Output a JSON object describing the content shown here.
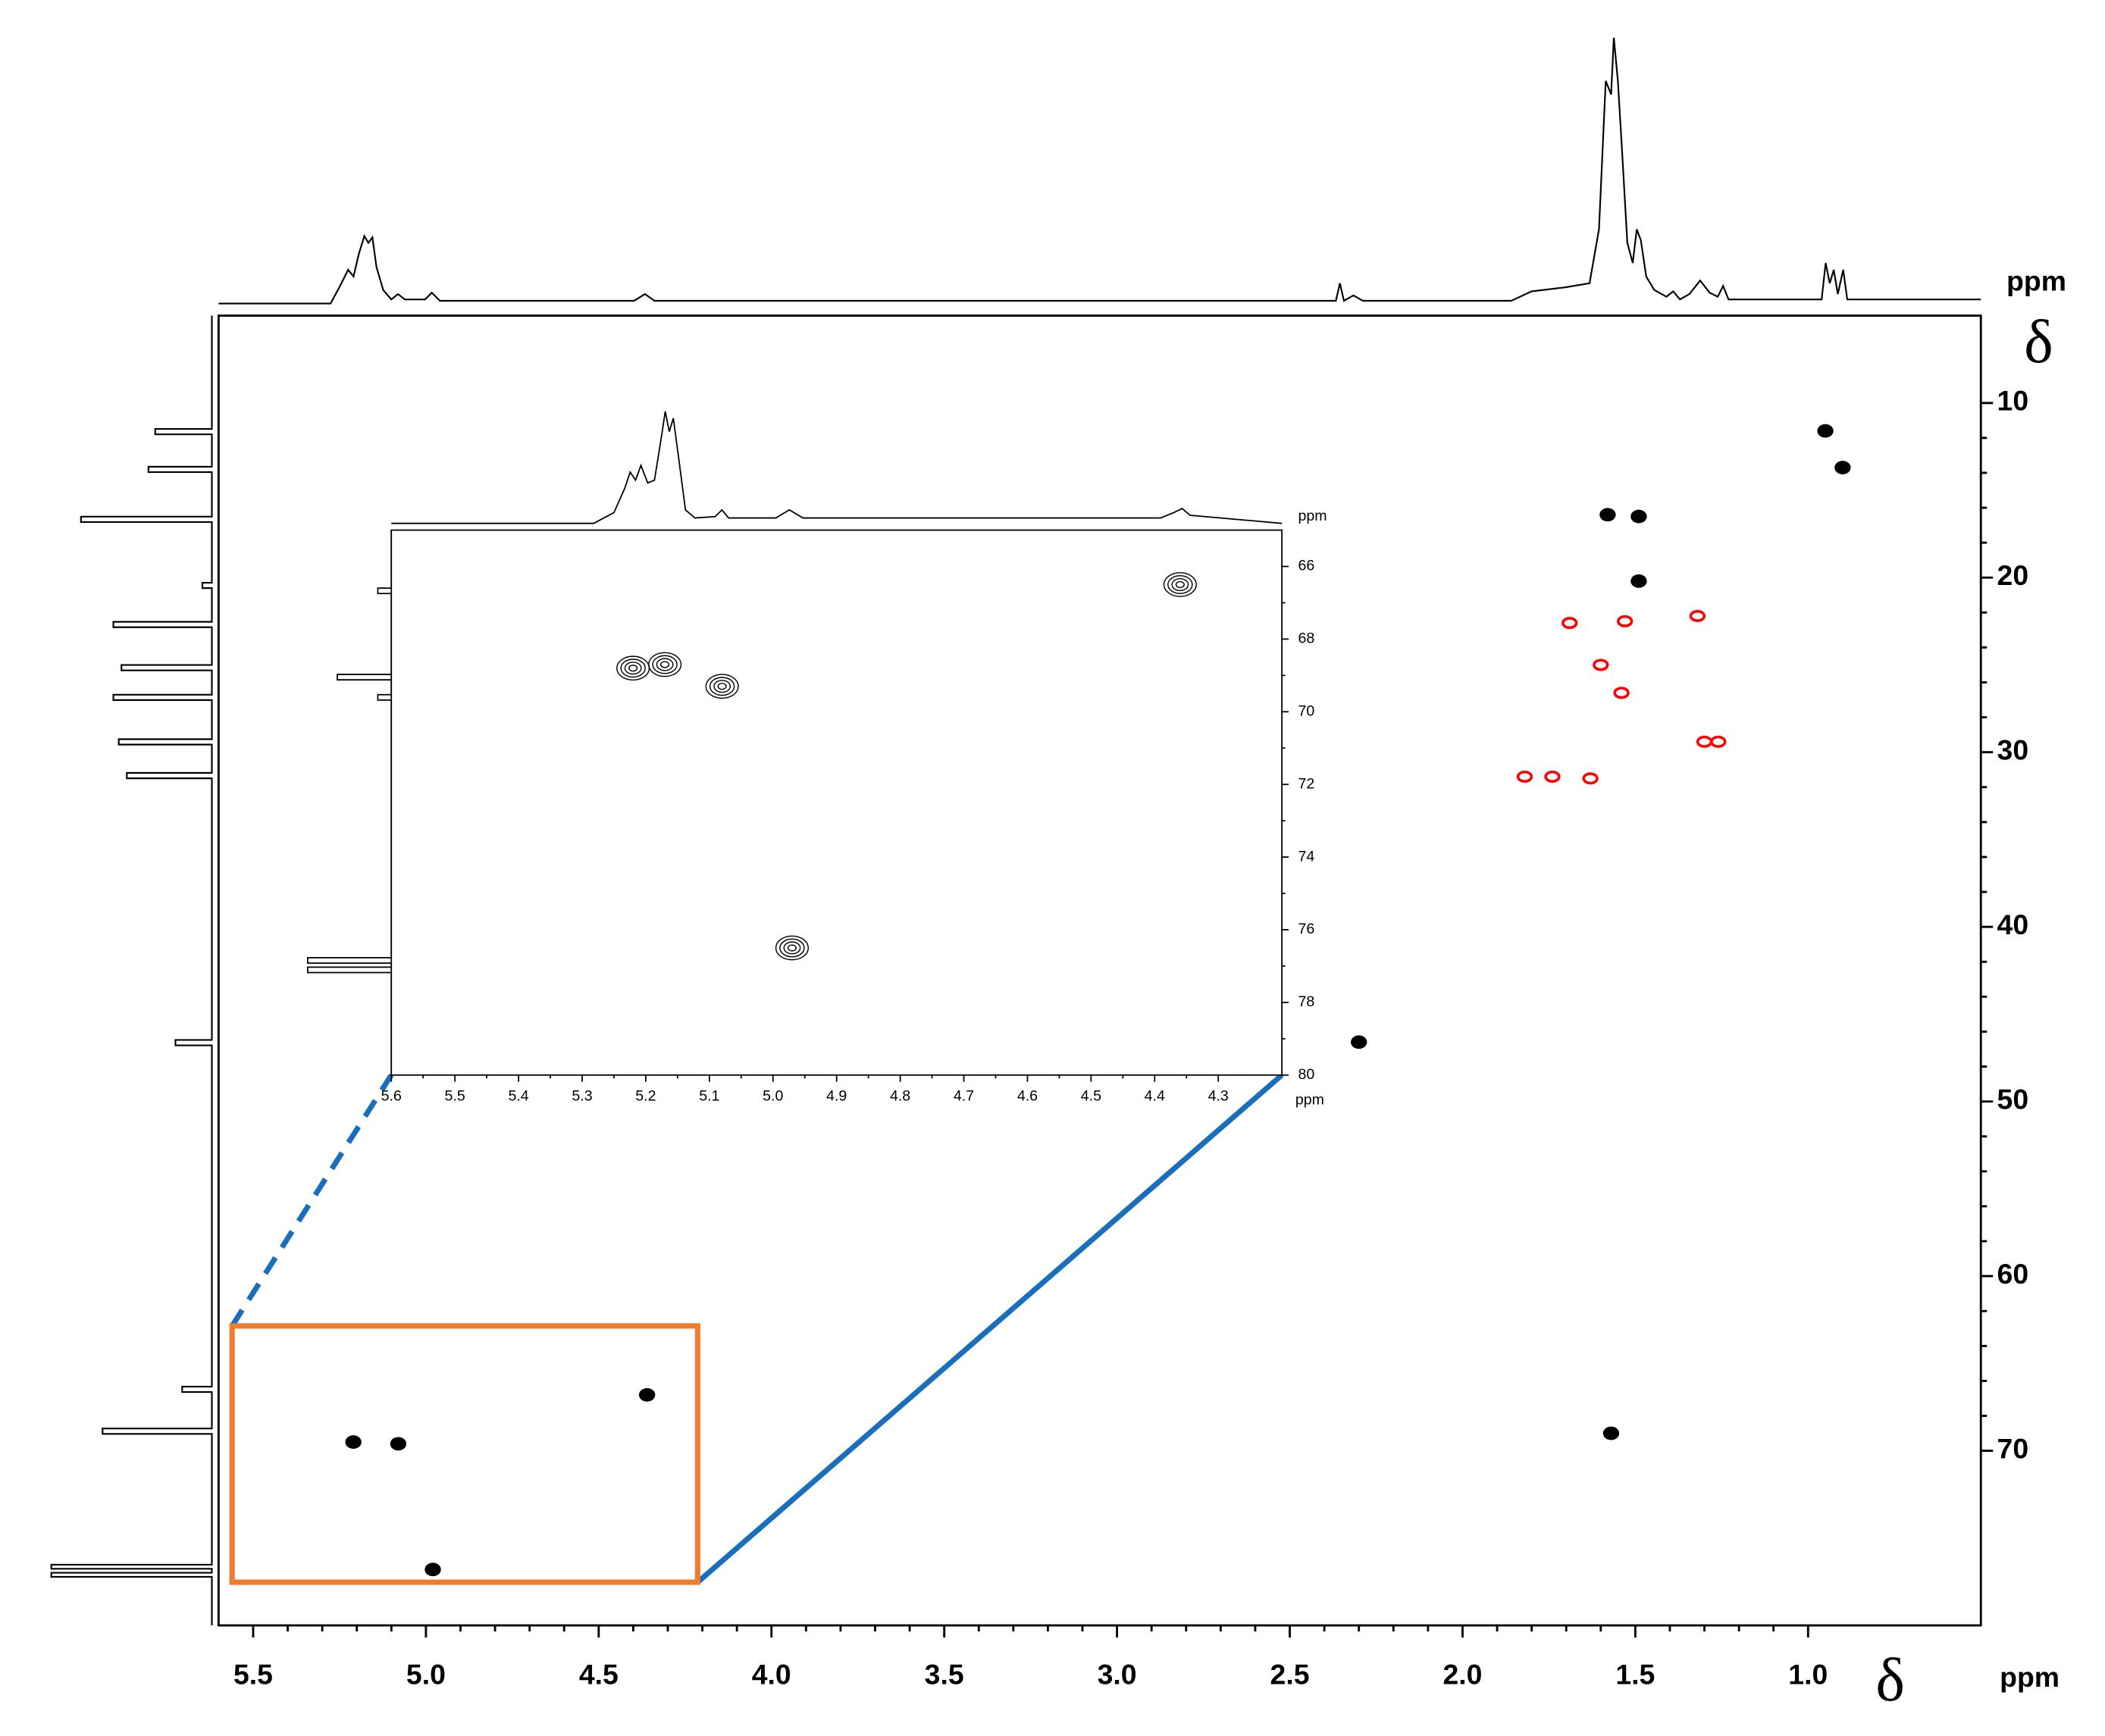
{
  "chart_data": [
    {
      "type": "scatter",
      "x_label": "δ",
      "x_unit": "ppm",
      "y_label": "δ",
      "y_unit": "ppm",
      "xlim": [
        5.6,
        0.5
      ],
      "ylim": [
        5,
        80
      ],
      "xticks": [
        5.5,
        {
          "value": 5.0,
          "label": "5.0"
        },
        4.5,
        {
          "value": 4.0,
          "label": "4.0"
        },
        3.5,
        {
          "value": 3.0,
          "label": "3.0"
        },
        2.5,
        {
          "value": 2.0,
          "label": "2.0"
        },
        1.5,
        {
          "value": 1.0,
          "label": "1.0"
        }
      ],
      "yticks": [
        10,
        20,
        30,
        40,
        50,
        60,
        70
      ],
      "series": [
        {
          "color": "#000000",
          "x": [
            0.95,
            0.9,
            1.58,
            1.49,
            1.49,
            2.3,
            1.57,
            4.98,
            4.36,
            5.21,
            5.08
          ],
          "y": [
            11.6,
            13.7,
            16.4,
            16.5,
            20.2,
            46.6,
            69.0,
            76.8,
            66.8,
            69.5,
            69.6
          ]
        },
        {
          "color": "#ff0000",
          "x": [
            1.69,
            1.53,
            1.32,
            1.6,
            1.54,
            1.3,
            1.26,
            1.74,
            1.82,
            1.63
          ],
          "y": [
            22.6,
            22.5,
            22.2,
            25.0,
            26.6,
            29.4,
            29.4,
            31.4,
            31.4,
            31.5
          ]
        }
      ]
    },
    {
      "type": "scatter",
      "x_unit": "ppm",
      "y_unit": "ppm",
      "xlim": [
        5.6,
        4.2
      ],
      "ylim": [
        65,
        80
      ],
      "xticks": [
        5.6,
        5.5,
        5.4,
        5.3,
        5.2,
        5.1,
        {
          "value": 5.0,
          "label": "5.0"
        },
        4.9,
        4.8,
        4.7,
        4.6,
        4.5,
        4.4,
        4.3
      ],
      "yticks": [
        66,
        68,
        70,
        72,
        74,
        76,
        78,
        80
      ],
      "series": [
        {
          "color": "#000000",
          "x": [
            4.36,
            5.22,
            5.17,
            5.08,
            4.97
          ],
          "y": [
            66.5,
            68.8,
            68.7,
            69.3,
            76.5
          ]
        }
      ]
    }
  ]
}
